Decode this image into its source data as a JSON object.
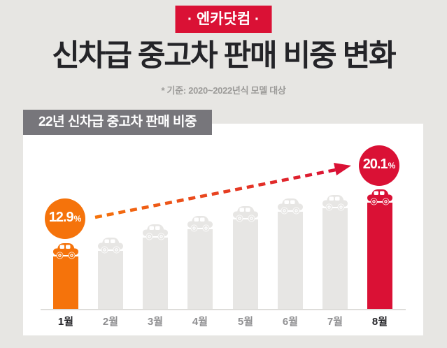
{
  "badge": {
    "label": "· 엔카닷컴 ·"
  },
  "title": "신차급 중고차 판매 비중 변화",
  "subtitle": "* 기준: 2020~2022년식 모델 대상",
  "panel": {
    "header": "22년 신차급 중고차 판매 비중"
  },
  "colors": {
    "background": "#E7E6E3",
    "brand_red": "#DA1135",
    "accent_orange": "#F5730B",
    "bar_gray": "#E7E6E4",
    "panel_header_gray": "#77767B",
    "panel_bg": "#FFFFFF"
  },
  "chart_data": {
    "type": "bar",
    "title": "22년 신차급 중고차 판매 비중",
    "categories": [
      "1월",
      "2월",
      "3월",
      "4월",
      "5월",
      "6월",
      "7월",
      "8월"
    ],
    "values": [
      12.9,
      13.7,
      15.4,
      16.6,
      17.9,
      18.9,
      19.4,
      20.1
    ],
    "unit": "%",
    "labeled_points": [
      {
        "category": "1월",
        "value": "12.9",
        "unit": "%",
        "color": "#F5730B"
      },
      {
        "category": "8월",
        "value": "20.1",
        "unit": "%",
        "color": "#DA1135"
      }
    ],
    "bar_colors": [
      "orange",
      "gray",
      "gray",
      "gray",
      "gray",
      "gray",
      "gray",
      "red"
    ],
    "highlight_label_indices": [
      0,
      7
    ],
    "annotations": [
      "dashed rising arrow from 12.9% bubble to 20.1% bubble"
    ],
    "ylim": [
      0,
      22
    ],
    "grid": false,
    "value_axis_shown": false,
    "legend": null
  }
}
